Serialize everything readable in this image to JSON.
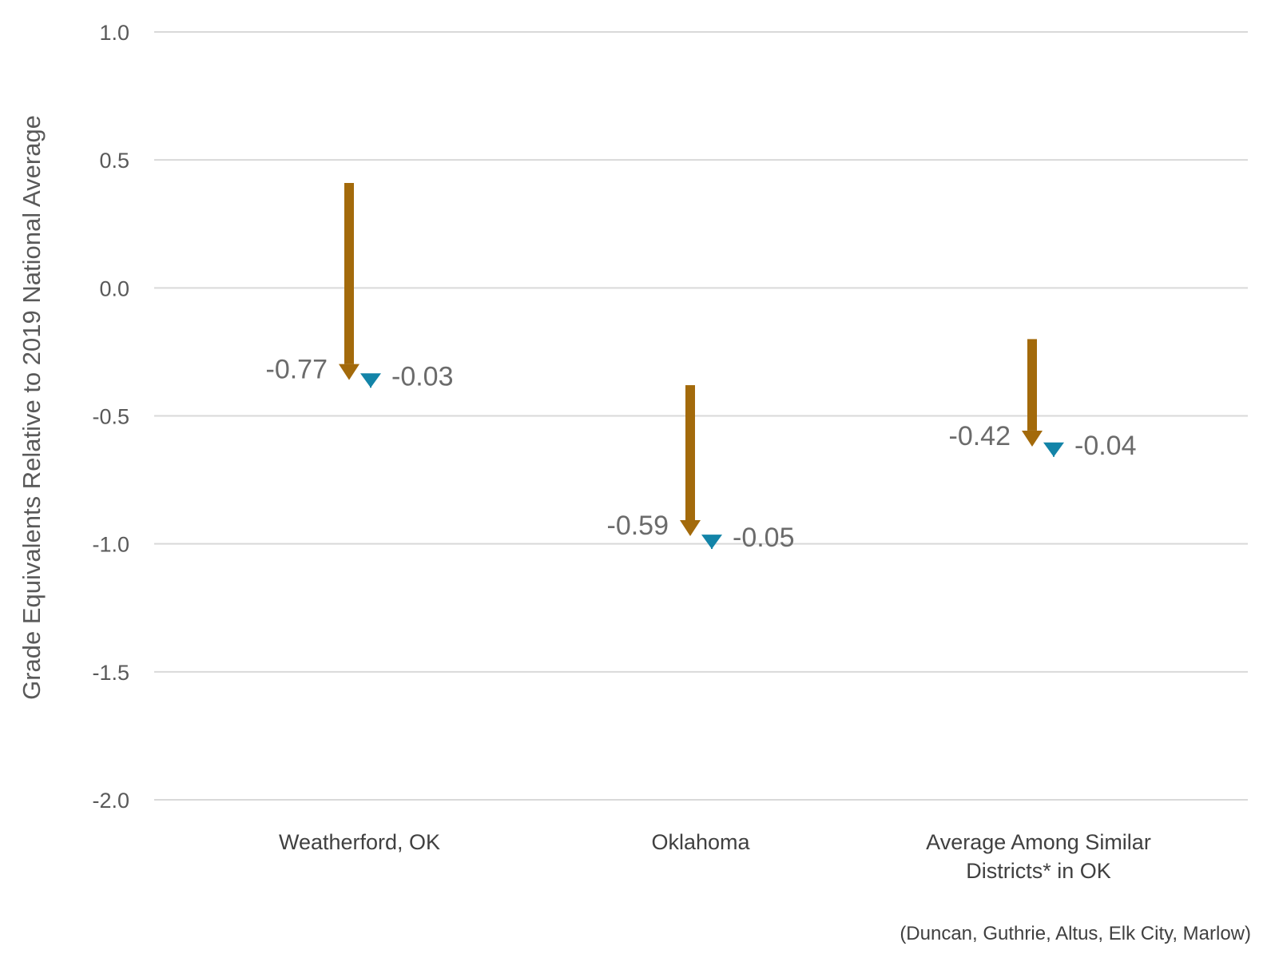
{
  "chart_data": {
    "type": "arrow",
    "ylabel": "Grade Equivalents Relative to 2019 National Average",
    "ylim": [
      -2.0,
      1.0
    ],
    "yticks": [
      1.0,
      0.5,
      0.0,
      -0.5,
      -1.0,
      -1.5,
      -2.0
    ],
    "ytick_labels": [
      "1.0",
      "0.5",
      "0.0",
      "-0.5",
      "-1.0",
      "-1.5",
      "-2.0"
    ],
    "grid": true,
    "categories": [
      {
        "label_lines": [
          "Weatherford, OK"
        ],
        "start": 0.41,
        "end": -0.36,
        "change_label": "-0.77",
        "second_change": -0.03,
        "second_label": "-0.03"
      },
      {
        "label_lines": [
          "Oklahoma"
        ],
        "start": -0.38,
        "end": -0.97,
        "change_label": "-0.59",
        "second_change": -0.05,
        "second_label": "-0.05"
      },
      {
        "label_lines": [
          "Average Among Similar",
          "Districts* in OK"
        ],
        "start": -0.2,
        "end": -0.62,
        "change_label": "-0.42",
        "second_change": -0.04,
        "second_label": "-0.04"
      }
    ],
    "colors": {
      "primary_arrow": "#a36a0b",
      "secondary_arrow": "#1384a8"
    },
    "footnote": "(Duncan, Guthrie, Altus, Elk City, Marlow)"
  }
}
